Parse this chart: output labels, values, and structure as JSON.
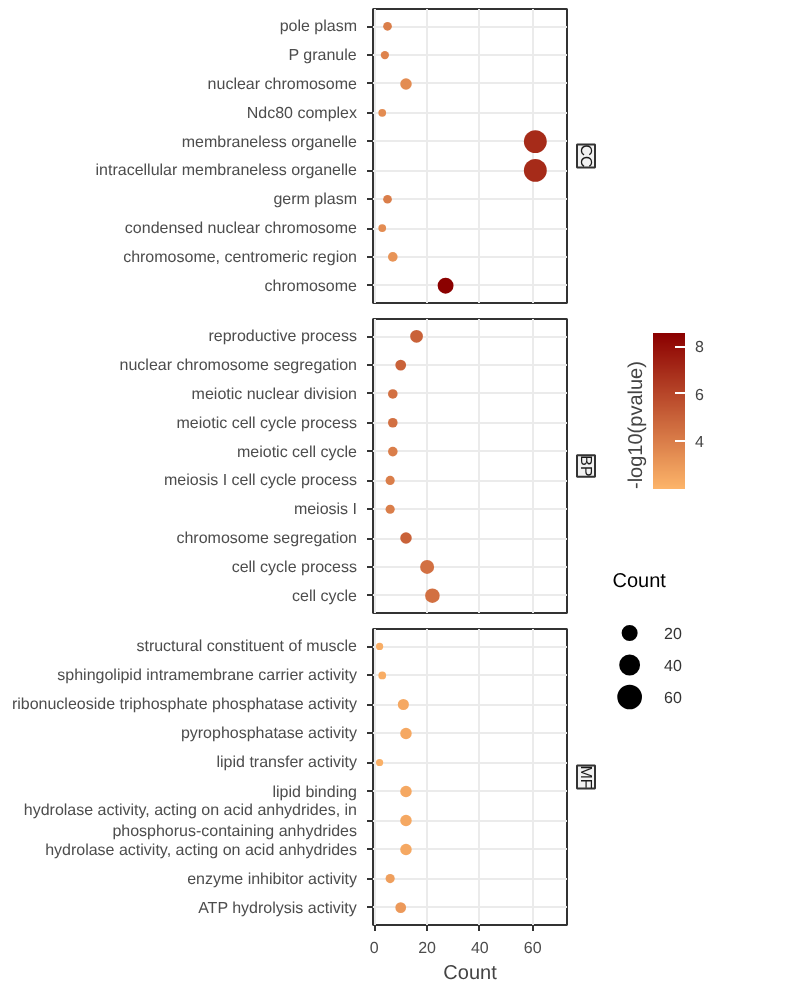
{
  "chart_data": {
    "type": "bubble",
    "orientation": "horizontal",
    "xlabel": "Count",
    "categories": [
      "pole plasm",
      "P granule",
      "nuclear chromosome",
      "Ndc80 complex",
      "membraneless organelle",
      "intracellular membraneless organelle",
      "germ plasm",
      "condensed nuclear chromosome",
      "chromosome, centromeric region",
      "chromosome",
      "reproductive process",
      "nuclear chromosome segregation",
      "meiotic nuclear division",
      "meiotic cell cycle process",
      "meiotic cell cycle",
      "meiosis I cell cycle process",
      "meiosis I",
      "chromosome segregation",
      "cell cycle process",
      "cell cycle",
      "structural constituent of muscle",
      "sphingolipid intramembrane carrier activity",
      "ribonucleoside triphosphate phosphatase activity",
      "pyrophosphatase activity",
      "lipid transfer activity",
      "lipid binding",
      "hydrolase activity, acting on acid anhydrides, in\nphosphorus-containing anhydrides",
      "hydrolase activity, acting on acid anhydrides",
      "enzyme inhibitor activity",
      "ATP hydrolysis activity"
    ],
    "values": [
      5,
      4,
      12,
      3,
      61,
      61,
      5,
      3,
      7,
      27,
      16,
      10,
      7,
      7,
      7,
      6,
      6,
      12,
      20,
      22,
      2,
      3,
      11,
      12,
      2,
      12,
      12,
      12,
      6,
      10
    ],
    "sizes": [
      5,
      4,
      12,
      3,
      61,
      61,
      5,
      3,
      7,
      27,
      16,
      10,
      7,
      7,
      7,
      6,
      6,
      12,
      20,
      22,
      2,
      3,
      11,
      12,
      2,
      12,
      12,
      12,
      6,
      10
    ],
    "cvalues": [
      4,
      3.8,
      3.5,
      3.5,
      7,
      7,
      4,
      3.5,
      3.2,
      8.5,
      5,
      5,
      4.5,
      4.5,
      4,
      4,
      4,
      5,
      4.5,
      4.5,
      2.3,
      2.3,
      2.5,
      2.5,
      2.2,
      2.5,
      2.5,
      2.5,
      2.8,
      3
    ],
    "annotations": [
      "CC",
      "BP",
      "MF"
    ],
    "xlim": [
      -0.5,
      73
    ],
    "xticks": [
      0,
      20,
      40,
      60
    ],
    "grid": true,
    "clabel": "-log10(pvalue)",
    "clim": [
      2.0,
      8.55
    ],
    "cticks": [
      4,
      6,
      8
    ],
    "legend_title": "Count",
    "size_legend": [
      20,
      40,
      60
    ]
  }
}
